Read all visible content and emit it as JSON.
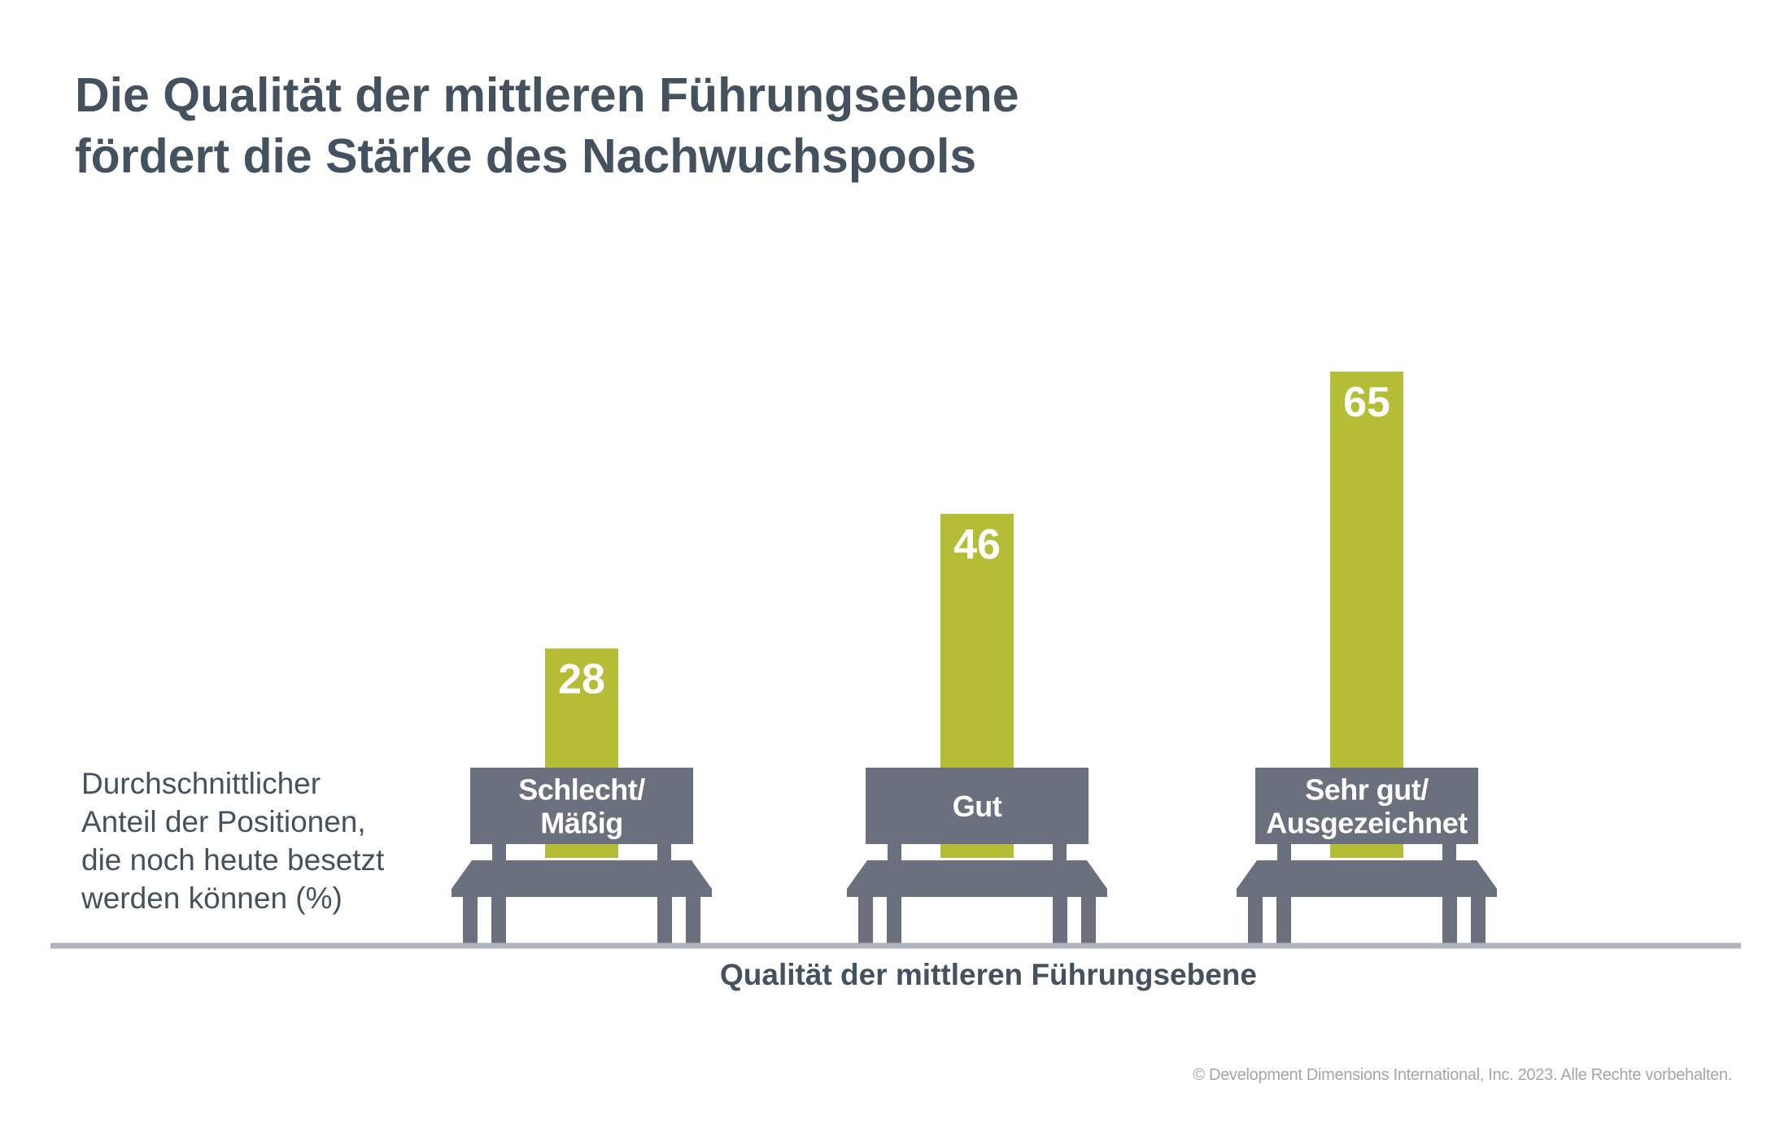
{
  "title_lines": [
    "Die Qualität der mittleren Führungsebene",
    "fördert die Stärke des Nachwuchspools"
  ],
  "copyright": "© Development Dimensions International, Inc. 2023. Alle Rechte vorbehalten.",
  "colors": {
    "bar": "#b5bd36",
    "bench": "#6a707d",
    "axis": "#aeb5bf",
    "text": "#44525f"
  },
  "chart_data": {
    "type": "bar",
    "title": "Die Qualität der mittleren Führungsebene fördert die Stärke des Nachwuchspools",
    "ylabel_lines": [
      "Durchschnittlicher",
      "Anteil der Positionen,",
      "die noch heute besetzt",
      "werden können (%)"
    ],
    "xlabel": "Qualität der mittleren Führungsebene",
    "categories": [
      [
        "Schlecht/",
        "Mäßig"
      ],
      [
        "Gut"
      ],
      [
        "Sehr gut/",
        "Ausgezeichnet"
      ]
    ],
    "values": [
      28,
      46,
      65
    ],
    "value_labels": [
      "28",
      "46",
      "65"
    ],
    "ylim": [
      0,
      65
    ],
    "grid": false,
    "legend": "none"
  }
}
